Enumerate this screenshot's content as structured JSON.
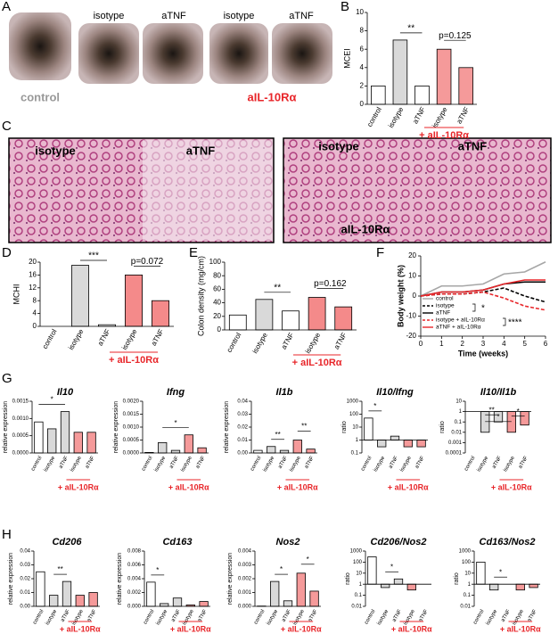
{
  "panel_letters": [
    "A",
    "B",
    "C",
    "D",
    "E",
    "F",
    "G",
    "H"
  ],
  "images": {
    "A": {
      "top": [
        "isotype",
        "aTNF",
        "isotype",
        "aTNF"
      ],
      "control": "control",
      "treatment": "aIL-10Rα"
    },
    "C": {
      "top": [
        "isotype",
        "aTNF",
        "isotype",
        "aTNF"
      ],
      "treatment": "aIL-10Rα"
    }
  },
  "chart_data": [
    {
      "type": "bar",
      "ylabel": "MCEI",
      "categories": [
        "control",
        "isotype",
        "aTNF",
        "isotype",
        "aTNF"
      ],
      "values": [
        2,
        7,
        2,
        6,
        4
      ],
      "colors": [
        "#ffffff",
        "#d9d9d9",
        "#ffffff",
        "#f59a9a",
        "#f59a9a"
      ],
      "ylim": [
        0,
        10
      ],
      "yticks": [
        0,
        2,
        4,
        6,
        8,
        10
      ],
      "annotations": [
        "**",
        "p=0.125"
      ],
      "group_label": "+ aIL-10Rα"
    },
    {
      "type": "bar",
      "ylabel": "MCHI",
      "categories": [
        "control",
        "isotype",
        "aTNF",
        "isotype",
        "aTNF"
      ],
      "values": [
        0,
        19,
        0.5,
        16,
        8
      ],
      "colors": [
        "#ffffff",
        "#d9d9d9",
        "#ffffff",
        "#f48a8a",
        "#f48a8a"
      ],
      "ylim": [
        0,
        20
      ],
      "yticks": [
        0,
        4,
        8,
        12,
        16,
        20
      ],
      "annotations": [
        "***",
        "p=0.072"
      ],
      "group_label": "+ aIL-10Rα"
    },
    {
      "type": "bar",
      "ylabel": "Colon density (mg/cm)",
      "categories": [
        "control",
        "isotype",
        "aTNF",
        "isotype",
        "aTNF"
      ],
      "values": [
        22,
        45,
        28,
        48,
        34
      ],
      "colors": [
        "#ffffff",
        "#d9d9d9",
        "#ffffff",
        "#f48a8a",
        "#f48a8a"
      ],
      "ylim": [
        0,
        100
      ],
      "yticks": [
        0,
        20,
        40,
        60,
        80,
        100
      ],
      "annotations": [
        "**",
        "p=0.162"
      ],
      "group_label": "+ aIL-10Rα"
    },
    {
      "type": "line",
      "ylabel": "Body weight (%)",
      "xlabel": "Time (weeks)",
      "x": [
        0,
        1,
        2,
        3,
        4,
        5,
        6
      ],
      "xlim": [
        0,
        6
      ],
      "xticks": [
        0,
        1,
        2,
        3,
        4,
        5,
        6
      ],
      "ylim": [
        -20,
        20
      ],
      "yticks": [
        -20,
        -10,
        0,
        10,
        20
      ],
      "legend": "lower left",
      "series": [
        {
          "name": "control",
          "color": "#a6a6a6",
          "dashed": false,
          "values": [
            0,
            5,
            5,
            6,
            11,
            12,
            17
          ]
        },
        {
          "name": "isotype",
          "color": "#000000",
          "dashed": true,
          "values": [
            0,
            1,
            1,
            2,
            4,
            0,
            -3
          ]
        },
        {
          "name": "aTNF",
          "color": "#000000",
          "dashed": false,
          "values": [
            0,
            2,
            2,
            3,
            6,
            7,
            7
          ]
        },
        {
          "name": "isotype + aIL-10Rα",
          "color": "#e8262a",
          "dashed": true,
          "values": [
            0,
            1,
            1,
            2,
            -1,
            -5,
            -7
          ]
        },
        {
          "name": "aTNF + aIL-10Rα",
          "color": "#e8262a",
          "dashed": false,
          "values": [
            0,
            2,
            2,
            3,
            6,
            8,
            8
          ]
        }
      ],
      "annotations": [
        "*",
        "****"
      ]
    },
    {
      "type": "bar",
      "title": "Il10",
      "ylabel": "relative expression",
      "categories": [
        "control",
        "isotype",
        "aTNF",
        "isotype",
        "aTNF"
      ],
      "values": [
        0.0009,
        0.0007,
        0.0012,
        0.0006,
        0.0006
      ],
      "colors": [
        "#ffffff",
        "#d9d9d9",
        "#d9d9d9",
        "#f59a9a",
        "#f59a9a"
      ],
      "ylim": [
        0,
        0.0015
      ],
      "yticks": [
        {
          "value": 0,
          "label": "0.0000"
        },
        {
          "value": 0.0005,
          "label": "0.0005"
        },
        {
          "value": 0.001,
          "label": "0.0010"
        },
        {
          "value": 0.0015,
          "label": "0.0015"
        }
      ],
      "annotations": [
        "*"
      ],
      "group_label": "+ aIL-10Rα"
    },
    {
      "type": "bar",
      "title": "Ifng",
      "ylabel": "relative expression",
      "categories": [
        "control",
        "isotype",
        "aTNF",
        "isotype",
        "aTNF"
      ],
      "values": [
        2e-05,
        0.0004,
        0.0001,
        0.0007,
        0.0002
      ],
      "colors": [
        "#ffffff",
        "#d9d9d9",
        "#d9d9d9",
        "#f59a9a",
        "#f59a9a"
      ],
      "ylim": [
        0,
        0.002
      ],
      "yticks": [
        {
          "value": 0,
          "label": "0.0000"
        },
        {
          "value": 0.0005,
          "label": "0.0005"
        },
        {
          "value": 0.001,
          "label": "0.0010"
        },
        {
          "value": 0.0015,
          "label": "0.0015"
        },
        {
          "value": 0.002,
          "label": "0.0020"
        }
      ],
      "annotations": [
        "*"
      ],
      "group_label": "+ aIL-10Rα"
    },
    {
      "type": "bar",
      "title": "Il1b",
      "ylabel": "relative expression",
      "categories": [
        "control",
        "isotype",
        "aTNF",
        "isotype",
        "aTNF"
      ],
      "values": [
        0.002,
        0.005,
        0.002,
        0.01,
        0.003
      ],
      "colors": [
        "#ffffff",
        "#d9d9d9",
        "#d9d9d9",
        "#f59a9a",
        "#f59a9a"
      ],
      "ylim": [
        0,
        0.04
      ],
      "yticks": [
        {
          "value": 0,
          "label": "0.00"
        },
        {
          "value": 0.01,
          "label": "0.01"
        },
        {
          "value": 0.02,
          "label": "0.02"
        },
        {
          "value": 0.03,
          "label": "0.03"
        },
        {
          "value": 0.04,
          "label": "0.04"
        }
      ],
      "annotations": [
        "**",
        "**"
      ],
      "group_label": "+ aIL-10Rα"
    },
    {
      "type": "bar",
      "title": "Il10/Ifng",
      "ylabel": "ratio",
      "log": true,
      "categories": [
        "control",
        "isotype",
        "aTNF",
        "isotype",
        "aTNF"
      ],
      "values": [
        50,
        0.3,
        2,
        0.3,
        0.3
      ],
      "colors": [
        "#ffffff",
        "#d9d9d9",
        "#d9d9d9",
        "#f59a9a",
        "#f59a9a"
      ],
      "ylim": [
        0.1,
        1000
      ],
      "yticks": [
        0.1,
        1,
        10,
        100,
        1000
      ],
      "annotations": [
        "*"
      ],
      "group_label": "+ aIL-10Rα"
    },
    {
      "type": "bar",
      "title": "Il10/Il1b",
      "ylabel": "ratio",
      "log": true,
      "categories": [
        "control",
        "isotype",
        "aTNF",
        "isotype",
        "aTNF"
      ],
      "values": [
        1,
        0.01,
        0.1,
        0.01,
        0.05
      ],
      "colors": [
        "#ffffff",
        "#d9d9d9",
        "#d9d9d9",
        "#f59a9a",
        "#f59a9a"
      ],
      "ylim": [
        0.0001,
        10
      ],
      "yticks": [
        0.0001,
        0.001,
        0.01,
        0.1,
        1,
        10
      ],
      "annotations": [
        "**",
        "*",
        "*"
      ],
      "group_label": "+ aIL-10Rα"
    },
    {
      "type": "bar",
      "title": "Cd206",
      "ylabel": "relative expression",
      "categories": [
        "control",
        "isotype",
        "aTNF",
        "isotype",
        "aTNF"
      ],
      "values": [
        0.025,
        0.008,
        0.018,
        0.008,
        0.01
      ],
      "colors": [
        "#ffffff",
        "#d9d9d9",
        "#d9d9d9",
        "#f59a9a",
        "#f59a9a"
      ],
      "ylim": [
        0,
        0.04
      ],
      "yticks": [
        {
          "value": 0,
          "label": "0.00"
        },
        {
          "value": 0.01,
          "label": "0.01"
        },
        {
          "value": 0.02,
          "label": "0.02"
        },
        {
          "value": 0.03,
          "label": "0.03"
        },
        {
          "value": 0.04,
          "label": "0.04"
        }
      ],
      "annotations": [
        "**"
      ],
      "group_label": "+ aIL-10Rα"
    },
    {
      "type": "bar",
      "title": "Cd163",
      "ylabel": "relative expression",
      "categories": [
        "control",
        "isotype",
        "aTNF",
        "isotype",
        "aTNF"
      ],
      "values": [
        0.0035,
        0.0004,
        0.0012,
        0.0002,
        0.0007
      ],
      "colors": [
        "#ffffff",
        "#d9d9d9",
        "#d9d9d9",
        "#f59a9a",
        "#f59a9a"
      ],
      "ylim": [
        0,
        0.008
      ],
      "yticks": [
        {
          "value": 0,
          "label": "0.000"
        },
        {
          "value": 0.002,
          "label": "0.002"
        },
        {
          "value": 0.004,
          "label": "0.004"
        },
        {
          "value": 0.006,
          "label": "0.006"
        },
        {
          "value": 0.008,
          "label": "0.008"
        }
      ],
      "annotations": [
        "*"
      ],
      "group_label": "+ aIL-10Rα"
    },
    {
      "type": "bar",
      "title": "Nos2",
      "ylabel": "relative expression",
      "categories": [
        "control",
        "isotype",
        "aTNF",
        "isotype",
        "aTNF"
      ],
      "values": [
        2e-05,
        0.0018,
        0.0004,
        0.0024,
        0.0011
      ],
      "colors": [
        "#ffffff",
        "#d9d9d9",
        "#d9d9d9",
        "#f59a9a",
        "#f59a9a"
      ],
      "ylim": [
        0,
        0.004
      ],
      "yticks": [
        {
          "value": 0,
          "label": "0.000"
        },
        {
          "value": 0.001,
          "label": "0.001"
        },
        {
          "value": 0.002,
          "label": "0.002"
        },
        {
          "value": 0.003,
          "label": "0.003"
        },
        {
          "value": 0.004,
          "label": "0.004"
        }
      ],
      "annotations": [
        "*",
        "*"
      ],
      "group_label": "+ aIL-10Rα"
    },
    {
      "type": "bar",
      "title": "Cd206/Nos2",
      "ylabel": "ratio",
      "log": true,
      "categories": [
        "control",
        "isotype",
        "aTNF",
        "isotype",
        "aTNF"
      ],
      "values": [
        300,
        0.5,
        3,
        0.3,
        1
      ],
      "colors": [
        "#ffffff",
        "#d9d9d9",
        "#d9d9d9",
        "#f59a9a",
        "#f59a9a"
      ],
      "ylim": [
        0.01,
        1000
      ],
      "yticks": [
        0.01,
        0.1,
        1,
        10,
        100,
        1000
      ],
      "annotations": [
        "*"
      ],
      "group_label": "+ aIL-10Rα"
    },
    {
      "type": "bar",
      "title": "Cd163/Nos2",
      "ylabel": "ratio",
      "log": true,
      "categories": [
        "control",
        "isotype",
        "aTNF",
        "isotype",
        "aTNF"
      ],
      "values": [
        100,
        0.3,
        1,
        0.3,
        0.5
      ],
      "colors": [
        "#ffffff",
        "#d9d9d9",
        "#d9d9d9",
        "#f59a9a",
        "#f59a9a"
      ],
      "ylim": [
        0.01,
        1000
      ],
      "yticks": [
        0.01,
        0.1,
        1,
        10,
        100,
        1000
      ],
      "annotations": [
        "*"
      ],
      "group_label": "+ aIL-10Rα"
    }
  ]
}
